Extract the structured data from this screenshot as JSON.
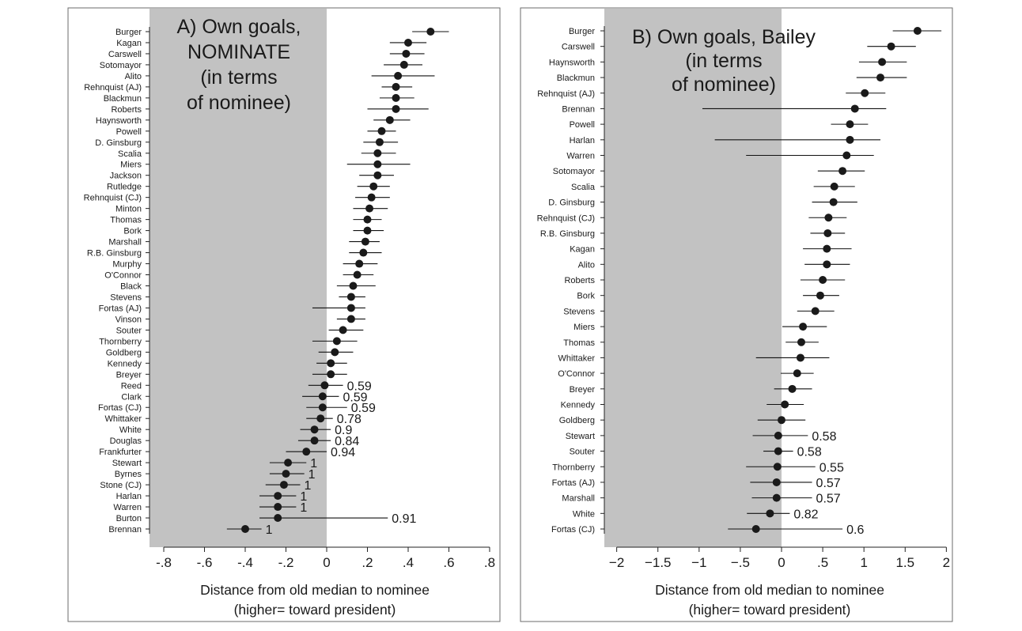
{
  "chart_data": [
    {
      "type": "scatter",
      "title": "A) Own goals, NOMINATE (in terms of nominee)",
      "title_lines": [
        "A) Own goals,",
        "NOMINATE",
        "(in terms",
        "of nominee)"
      ],
      "xlabel_lines": [
        "Distance from old median to nominee",
        "(higher= toward president)"
      ],
      "xlim": [
        -0.87,
        0.81
      ],
      "xticks": [
        -0.8,
        -0.6,
        -0.4,
        -0.2,
        0,
        0.2,
        0.4,
        0.6,
        0.8
      ],
      "xtick_labels": [
        "-.8",
        "-.6",
        "-.4",
        "-.2",
        "0",
        ".2",
        ".4",
        ".6",
        ".8"
      ],
      "shade_range": [
        -0.87,
        0
      ],
      "series": [
        {
          "label": "Burger",
          "value": 0.51,
          "low": 0.42,
          "high": 0.6
        },
        {
          "label": "Kagan",
          "value": 0.4,
          "low": 0.31,
          "high": 0.49
        },
        {
          "label": "Carswell",
          "value": 0.39,
          "low": 0.31,
          "high": 0.48
        },
        {
          "label": "Sotomayor",
          "value": 0.38,
          "low": 0.28,
          "high": 0.47
        },
        {
          "label": "Alito",
          "value": 0.35,
          "low": 0.22,
          "high": 0.53
        },
        {
          "label": "Rehnquist (AJ)",
          "value": 0.34,
          "low": 0.27,
          "high": 0.42
        },
        {
          "label": "Blackmun",
          "value": 0.34,
          "low": 0.26,
          "high": 0.43
        },
        {
          "label": "Roberts",
          "value": 0.34,
          "low": 0.2,
          "high": 0.5
        },
        {
          "label": "Haynsworth",
          "value": 0.31,
          "low": 0.23,
          "high": 0.41
        },
        {
          "label": "Powell",
          "value": 0.27,
          "low": 0.2,
          "high": 0.34
        },
        {
          "label": "D. Ginsburg",
          "value": 0.26,
          "low": 0.18,
          "high": 0.35
        },
        {
          "label": "Scalia",
          "value": 0.25,
          "low": 0.17,
          "high": 0.34
        },
        {
          "label": "Miers",
          "value": 0.25,
          "low": 0.1,
          "high": 0.41
        },
        {
          "label": "Jackson",
          "value": 0.25,
          "low": 0.16,
          "high": 0.33
        },
        {
          "label": "Rutledge",
          "value": 0.23,
          "low": 0.15,
          "high": 0.31
        },
        {
          "label": "Rehnquist (CJ)",
          "value": 0.22,
          "low": 0.14,
          "high": 0.31
        },
        {
          "label": "Minton",
          "value": 0.21,
          "low": 0.13,
          "high": 0.3
        },
        {
          "label": "Thomas",
          "value": 0.2,
          "low": 0.13,
          "high": 0.27
        },
        {
          "label": "Bork",
          "value": 0.2,
          "low": 0.13,
          "high": 0.28
        },
        {
          "label": "Marshall",
          "value": 0.19,
          "low": 0.11,
          "high": 0.26
        },
        {
          "label": "R.B. Ginsburg",
          "value": 0.18,
          "low": 0.11,
          "high": 0.27
        },
        {
          "label": "Murphy",
          "value": 0.16,
          "low": 0.08,
          "high": 0.25
        },
        {
          "label": "O'Connor",
          "value": 0.15,
          "low": 0.08,
          "high": 0.23
        },
        {
          "label": "Black",
          "value": 0.13,
          "low": 0.05,
          "high": 0.24
        },
        {
          "label": "Stevens",
          "value": 0.12,
          "low": 0.06,
          "high": 0.19
        },
        {
          "label": "Fortas (AJ)",
          "value": 0.12,
          "low": -0.07,
          "high": 0.19
        },
        {
          "label": "Vinson",
          "value": 0.12,
          "low": 0.05,
          "high": 0.19
        },
        {
          "label": "Souter",
          "value": 0.08,
          "low": 0.01,
          "high": 0.18
        },
        {
          "label": "Thornberry",
          "value": 0.05,
          "low": -0.07,
          "high": 0.15
        },
        {
          "label": "Goldberg",
          "value": 0.04,
          "low": -0.04,
          "high": 0.13
        },
        {
          "label": "Kennedy",
          "value": 0.02,
          "low": -0.05,
          "high": 0.1
        },
        {
          "label": "Breyer",
          "value": 0.02,
          "low": -0.07,
          "high": 0.1
        },
        {
          "label": "Reed",
          "value": -0.01,
          "low": -0.09,
          "high": 0.08,
          "note": "0.59"
        },
        {
          "label": "Clark",
          "value": -0.02,
          "low": -0.12,
          "high": 0.06,
          "note": "0.59"
        },
        {
          "label": "Fortas (CJ)",
          "value": -0.02,
          "low": -0.1,
          "high": 0.1,
          "note": "0.59"
        },
        {
          "label": "Whittaker",
          "value": -0.03,
          "low": -0.1,
          "high": 0.03,
          "note": "0.78"
        },
        {
          "label": "White",
          "value": -0.06,
          "low": -0.13,
          "high": 0.02,
          "note": "0.9"
        },
        {
          "label": "Douglas",
          "value": -0.06,
          "low": -0.14,
          "high": 0.02,
          "note": "0.84"
        },
        {
          "label": "Frankfurter",
          "value": -0.1,
          "low": -0.2,
          "high": 0.0,
          "note": "0.94"
        },
        {
          "label": "Stewart",
          "value": -0.19,
          "low": -0.28,
          "high": -0.1,
          "note": "1"
        },
        {
          "label": "Byrnes",
          "value": -0.2,
          "low": -0.28,
          "high": -0.11,
          "note": "1"
        },
        {
          "label": "Stone (CJ)",
          "value": -0.21,
          "low": -0.3,
          "high": -0.13,
          "note": "1"
        },
        {
          "label": "Harlan",
          "value": -0.24,
          "low": -0.33,
          "high": -0.15,
          "note": "1"
        },
        {
          "label": "Warren",
          "value": -0.24,
          "low": -0.33,
          "high": -0.15,
          "note": "1"
        },
        {
          "label": "Burton",
          "value": -0.24,
          "low": -0.33,
          "high": 0.3,
          "note": "0.91"
        },
        {
          "label": "Brennan",
          "value": -0.4,
          "low": -0.49,
          "high": -0.32,
          "note": "1"
        }
      ]
    },
    {
      "type": "scatter",
      "title": "B) Own goals, Bailey (in terms of nominee)",
      "title_lines": [
        "B) Own goals, Bailey",
        "(in terms",
        "of nominee)"
      ],
      "xlabel_lines": [
        "Distance from old median to nominee",
        "(higher= toward president)"
      ],
      "xlim": [
        -2.15,
        2.0
      ],
      "xticks": [
        -2,
        -1.5,
        -1,
        -0.5,
        0,
        0.5,
        1,
        1.5,
        2
      ],
      "xtick_labels": [
        "−2",
        "−1.5",
        "−1",
        "−.5",
        "0",
        ".5",
        "1",
        "1.5",
        "2"
      ],
      "shade_range": [
        -2.15,
        0
      ],
      "series": [
        {
          "label": "Burger",
          "value": 1.65,
          "low": 1.35,
          "high": 1.94
        },
        {
          "label": "Carswell",
          "value": 1.33,
          "low": 1.04,
          "high": 1.63
        },
        {
          "label": "Haynsworth",
          "value": 1.22,
          "low": 0.94,
          "high": 1.52
        },
        {
          "label": "Blackmun",
          "value": 1.2,
          "low": 0.91,
          "high": 1.52
        },
        {
          "label": "Rehnquist (AJ)",
          "value": 1.01,
          "low": 0.78,
          "high": 1.26
        },
        {
          "label": "Brennan",
          "value": 0.89,
          "low": -0.96,
          "high": 1.27
        },
        {
          "label": "Powell",
          "value": 0.83,
          "low": 0.6,
          "high": 1.05
        },
        {
          "label": "Harlan",
          "value": 0.83,
          "low": -0.81,
          "high": 1.2
        },
        {
          "label": "Warren",
          "value": 0.79,
          "low": -0.43,
          "high": 1.12
        },
        {
          "label": "Sotomayor",
          "value": 0.74,
          "low": 0.44,
          "high": 1.01
        },
        {
          "label": "Scalia",
          "value": 0.64,
          "low": 0.39,
          "high": 0.89
        },
        {
          "label": "D. Ginsburg",
          "value": 0.63,
          "low": 0.37,
          "high": 0.92
        },
        {
          "label": "Rehnquist (CJ)",
          "value": 0.57,
          "low": 0.33,
          "high": 0.79
        },
        {
          "label": "R.B. Ginsburg",
          "value": 0.56,
          "low": 0.35,
          "high": 0.77
        },
        {
          "label": "Kagan",
          "value": 0.55,
          "low": 0.26,
          "high": 0.85
        },
        {
          "label": "Alito",
          "value": 0.55,
          "low": 0.28,
          "high": 0.83
        },
        {
          "label": "Roberts",
          "value": 0.5,
          "low": 0.23,
          "high": 0.77
        },
        {
          "label": "Bork",
          "value": 0.47,
          "low": 0.26,
          "high": 0.7
        },
        {
          "label": "Stevens",
          "value": 0.41,
          "low": 0.19,
          "high": 0.64
        },
        {
          "label": "Miers",
          "value": 0.26,
          "low": 0.01,
          "high": 0.55
        },
        {
          "label": "Thomas",
          "value": 0.24,
          "low": 0.05,
          "high": 0.45
        },
        {
          "label": "Whittaker",
          "value": 0.23,
          "low": -0.31,
          "high": 0.58
        },
        {
          "label": "O'Connor",
          "value": 0.19,
          "low": -0.01,
          "high": 0.39
        },
        {
          "label": "Breyer",
          "value": 0.13,
          "low": -0.09,
          "high": 0.37
        },
        {
          "label": "Kennedy",
          "value": 0.04,
          "low": -0.18,
          "high": 0.27
        },
        {
          "label": "Goldberg",
          "value": 0.0,
          "low": -0.29,
          "high": 0.29
        },
        {
          "label": "Stewart",
          "value": -0.04,
          "low": -0.35,
          "high": 0.32,
          "note": "0.58"
        },
        {
          "label": "Souter",
          "value": -0.04,
          "low": -0.22,
          "high": 0.14,
          "note": "0.58"
        },
        {
          "label": "Thornberry",
          "value": -0.05,
          "low": -0.43,
          "high": 0.41,
          "note": "0.55"
        },
        {
          "label": "Fortas (AJ)",
          "value": -0.06,
          "low": -0.38,
          "high": 0.37,
          "note": "0.57"
        },
        {
          "label": "Marshall",
          "value": -0.06,
          "low": -0.36,
          "high": 0.37,
          "note": "0.57"
        },
        {
          "label": "White",
          "value": -0.14,
          "low": -0.42,
          "high": 0.1,
          "note": "0.82"
        },
        {
          "label": "Fortas (CJ)",
          "value": -0.31,
          "low": -0.65,
          "high": 0.74,
          "note": "0.6"
        }
      ]
    }
  ]
}
